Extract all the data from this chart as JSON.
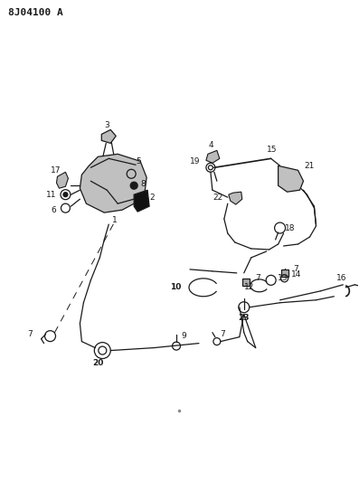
{
  "title": "8J04100 A",
  "bg_color": "#ffffff",
  "line_color": "#1a1a1a",
  "fig_width": 3.97,
  "fig_height": 5.33,
  "dpi": 100
}
